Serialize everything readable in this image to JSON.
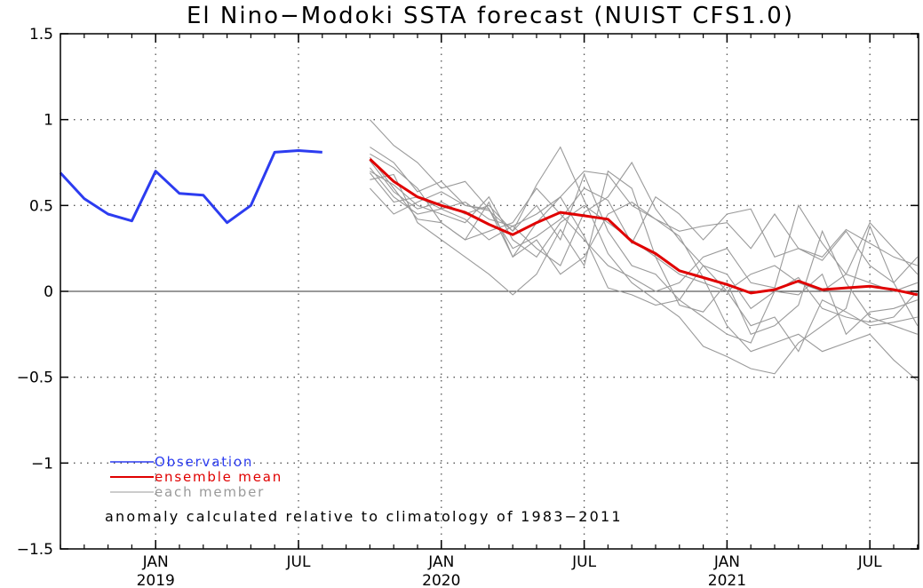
{
  "chart_data": {
    "type": "line",
    "title": "El Nino−Modoki SSTA forecast (NUIST CFS1.0)",
    "annotation": "anomaly calculated relative to climatology of 1983−2011",
    "ylim": [
      -1.5,
      1.5
    ],
    "yticks": [
      -1.5,
      -1,
      -0.5,
      0,
      0.5,
      1,
      1.5
    ],
    "ytick_labels": [
      "−1.5",
      "−1",
      "−0.5",
      "0",
      "0.5",
      "1",
      "1.5"
    ],
    "xlim": [
      "2018-09",
      "2021-10"
    ],
    "xticks": [
      {
        "month": "2019-01",
        "label": "JAN",
        "year": "2019"
      },
      {
        "month": "2019-07",
        "label": "JUL",
        "year": ""
      },
      {
        "month": "2020-01",
        "label": "JAN",
        "year": "2020"
      },
      {
        "month": "2020-07",
        "label": "JUL",
        "year": ""
      },
      {
        "month": "2021-01",
        "label": "JAN",
        "year": "2021"
      },
      {
        "month": "2021-07",
        "label": "JUL",
        "year": ""
      }
    ],
    "zero_line": true,
    "grid": true,
    "legend_position": "bottom-left",
    "series": [
      {
        "name": "Observation",
        "role": "observation",
        "color": "#2c3cf0",
        "x": [
          "2018-09",
          "2018-10",
          "2018-11",
          "2018-12",
          "2019-01",
          "2019-02",
          "2019-03",
          "2019-04",
          "2019-05",
          "2019-06",
          "2019-07",
          "2019-08",
          "2019-09"
        ],
        "values": [
          0.69,
          0.54,
          0.45,
          0.41,
          0.7,
          0.57,
          0.56,
          0.4,
          0.5,
          0.81,
          0.82,
          0.81,
          null
        ]
      },
      {
        "name": "ensemble mean",
        "role": "mean",
        "color": "#e00000",
        "x": [
          "2019-10",
          "2019-11",
          "2019-12",
          "2020-01",
          "2020-02",
          "2020-03",
          "2020-04",
          "2020-05",
          "2020-06",
          "2020-07",
          "2020-08",
          "2020-09",
          "2020-10",
          "2020-11",
          "2020-12",
          "2021-01",
          "2021-02",
          "2021-03",
          "2021-04",
          "2021-05",
          "2021-06",
          "2021-07",
          "2021-08",
          "2021-09"
        ],
        "values": [
          0.77,
          0.64,
          0.55,
          0.5,
          0.46,
          0.39,
          0.33,
          0.4,
          0.46,
          0.44,
          0.42,
          0.29,
          0.22,
          0.12,
          0.08,
          0.04,
          -0.01,
          0.01,
          0.06,
          0.01,
          0.02,
          0.03,
          0.01,
          -0.02
        ]
      },
      {
        "name": "each member",
        "role": "member",
        "color": "#9a9a9a",
        "x": [
          "2019-10",
          "2019-11",
          "2019-12",
          "2020-01",
          "2020-02",
          "2020-03",
          "2020-04",
          "2020-05",
          "2020-06",
          "2020-07",
          "2020-08",
          "2020-09",
          "2020-10",
          "2020-11",
          "2020-12",
          "2021-01",
          "2021-02",
          "2021-03",
          "2021-04",
          "2021-05",
          "2021-06",
          "2021-07",
          "2021-08",
          "2021-09"
        ],
        "members": [
          [
            0.84,
            0.75,
            0.58,
            0.64,
            0.5,
            0.47,
            0.35,
            0.62,
            0.84,
            0.53,
            0.22,
            0.05,
            -0.05,
            -0.15,
            -0.32,
            -0.38,
            -0.45,
            -0.48,
            -0.3,
            -0.2,
            -0.1,
            0.38,
            0.05,
            -0.2
          ],
          [
            0.72,
            0.55,
            0.45,
            0.48,
            0.52,
            0.42,
            0.38,
            0.45,
            0.55,
            0.7,
            0.68,
            0.5,
            0.42,
            0.35,
            0.38,
            0.4,
            0.25,
            0.45,
            0.25,
            0.2,
            0.36,
            0.28,
            0.2,
            0.15
          ],
          [
            0.65,
            0.68,
            0.4,
            0.3,
            0.2,
            0.1,
            -0.02,
            0.1,
            0.36,
            0.15,
            0.7,
            0.6,
            0.2,
            -0.08,
            -0.12,
            0.05,
            -0.25,
            -0.2,
            -0.08,
            0.35,
            0.05,
            -0.15,
            -0.2,
            -0.25
          ],
          [
            0.78,
            0.6,
            0.42,
            0.4,
            0.3,
            0.52,
            0.2,
            0.3,
            0.1,
            0.2,
            0.45,
            0.52,
            0.42,
            0.32,
            0.08,
            -0.2,
            -0.35,
            -0.3,
            -0.25,
            -0.35,
            -0.3,
            -0.25,
            -0.4,
            -0.52
          ],
          [
            1.0,
            0.85,
            0.75,
            0.6,
            0.64,
            0.48,
            0.25,
            0.32,
            0.42,
            0.6,
            0.53,
            0.28,
            0.55,
            0.45,
            0.3,
            0.45,
            0.48,
            0.2,
            0.25,
            0.18,
            0.35,
            0.15,
            0.05,
            0.2
          ],
          [
            0.69,
            0.52,
            0.55,
            0.48,
            0.42,
            0.3,
            0.38,
            0.25,
            0.15,
            0.46,
            0.55,
            0.75,
            0.48,
            0.3,
            0.15,
            0.1,
            -0.1,
            0.0,
            -0.02,
            0.1,
            -0.25,
            -0.12,
            -0.1,
            -0.05
          ],
          [
            0.6,
            0.45,
            0.52,
            0.58,
            0.5,
            0.48,
            0.2,
            0.4,
            0.55,
            0.32,
            0.02,
            -0.02,
            -0.08,
            -0.05,
            0.15,
            0.0,
            -0.2,
            -0.15,
            -0.35,
            -0.05,
            -0.12,
            -0.2,
            -0.18,
            -0.15
          ],
          [
            0.8,
            0.72,
            0.6,
            0.4,
            0.3,
            0.35,
            0.4,
            0.6,
            0.45,
            0.3,
            0.15,
            0.08,
            0.0,
            0.05,
            0.2,
            0.25,
            0.05,
            0.02,
            0.5,
            0.28,
            0.1,
            0.4,
            0.25,
            0.1
          ],
          [
            0.76,
            0.58,
            0.48,
            0.52,
            0.45,
            0.5,
            0.35,
            0.5,
            0.3,
            0.68,
            0.35,
            0.15,
            0.1,
            -0.05,
            -0.15,
            -0.25,
            -0.3,
            0.0,
            0.08,
            -0.1,
            -0.15,
            -0.18,
            -0.15,
            0.0
          ],
          [
            0.7,
            0.62,
            0.5,
            0.45,
            0.4,
            0.55,
            0.3,
            0.2,
            0.4,
            0.5,
            0.4,
            0.3,
            0.2,
            0.1,
            0.05,
            0.0,
            0.1,
            0.15,
            0.05,
            0.0,
            0.1,
            0.05,
            0.0,
            0.05
          ]
        ]
      }
    ]
  }
}
